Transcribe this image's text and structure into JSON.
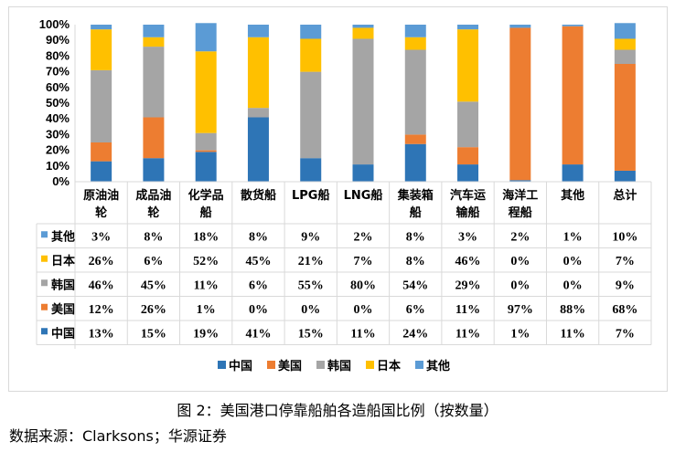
{
  "caption": "图 2：美国港口停靠船舶各造船国比例（按数量）",
  "source": "数据来源：Clarksons；华源证券",
  "chart_data": {
    "type": "bar",
    "stacked": true,
    "percent_stacked": true,
    "title": "",
    "xlabel": "",
    "ylabel": "",
    "ylim": [
      0,
      100
    ],
    "yticks": [
      "0%",
      "10%",
      "20%",
      "30%",
      "40%",
      "50%",
      "60%",
      "70%",
      "80%",
      "90%",
      "100%"
    ],
    "categories": [
      [
        "原油油",
        "轮"
      ],
      [
        "成品油",
        "轮"
      ],
      [
        "化学品",
        "船"
      ],
      [
        "散货船"
      ],
      [
        "LPG船"
      ],
      [
        "LNG船"
      ],
      [
        "集装箱",
        "船"
      ],
      [
        "汽车运",
        "输船"
      ],
      [
        "海洋工",
        "程船"
      ],
      [
        "其他"
      ],
      [
        "总计"
      ]
    ],
    "series": [
      {
        "name": "中国",
        "color": "#2E75B6",
        "values": [
          13,
          15,
          19,
          41,
          15,
          11,
          24,
          11,
          1,
          11,
          7
        ],
        "labels": [
          "13%",
          "15%",
          "19%",
          "41%",
          "15%",
          "11%",
          "24%",
          "11%",
          "1%",
          "11%",
          "7%"
        ]
      },
      {
        "name": "美国",
        "color": "#ED7D31",
        "values": [
          12,
          26,
          1,
          0,
          0,
          0,
          6,
          11,
          97,
          88,
          68
        ],
        "labels": [
          "12%",
          "26%",
          "1%",
          "0%",
          "0%",
          "0%",
          "6%",
          "11%",
          "97%",
          "88%",
          "68%"
        ]
      },
      {
        "name": "韩国",
        "color": "#A5A5A5",
        "values": [
          46,
          45,
          11,
          6,
          55,
          80,
          54,
          29,
          0,
          0,
          9
        ],
        "labels": [
          "46%",
          "45%",
          "11%",
          "6%",
          "55%",
          "80%",
          "54%",
          "29%",
          "0%",
          "0%",
          "9%"
        ]
      },
      {
        "name": "日本",
        "color": "#FFC000",
        "values": [
          26,
          6,
          52,
          45,
          21,
          7,
          8,
          46,
          0,
          0,
          7
        ],
        "labels": [
          "26%",
          "6%",
          "52%",
          "45%",
          "21%",
          "7%",
          "8%",
          "46%",
          "0%",
          "0%",
          "7%"
        ]
      },
      {
        "name": "其他",
        "color": "#5B9BD5",
        "values": [
          3,
          8,
          18,
          8,
          9,
          2,
          8,
          3,
          2,
          1,
          10
        ],
        "labels": [
          "3%",
          "8%",
          "18%",
          "8%",
          "9%",
          "2%",
          "8%",
          "3%",
          "2%",
          "1%",
          "10%"
        ]
      }
    ],
    "grid": false,
    "legend": "bottom",
    "data_table": true
  }
}
